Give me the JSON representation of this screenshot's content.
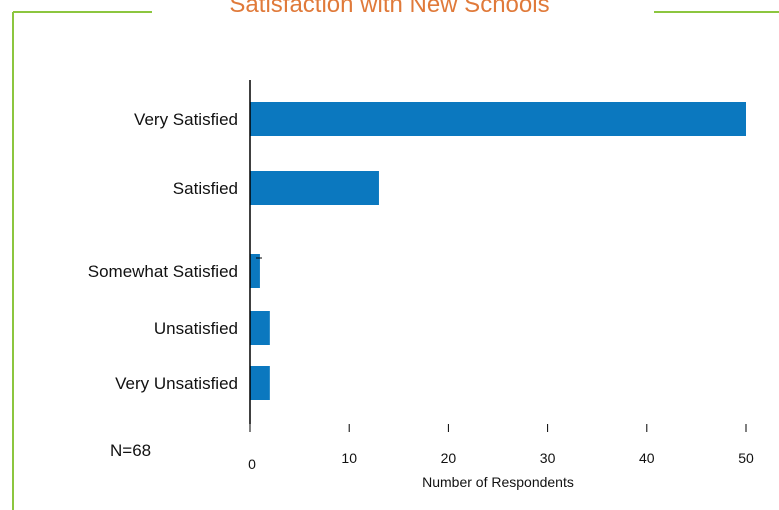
{
  "chart_data": {
    "type": "bar",
    "orientation": "horizontal",
    "title": "Satisfaction with New Schools",
    "xlabel": "Number of Respondents",
    "ylabel": "",
    "note": "N=68",
    "categories": [
      "Very Satisfied",
      "Satisfied",
      "Somewhat Satisfied",
      "Unsatisfied",
      "Very Unsatisfied"
    ],
    "values": [
      50,
      13,
      1,
      2,
      2
    ],
    "xlim": [
      0,
      50
    ],
    "ticks": [
      0,
      10,
      20,
      30,
      40,
      50
    ],
    "grid": false,
    "legend": "none"
  },
  "colors": {
    "bar": "#0b78bf",
    "frame": "#8cc63f",
    "title": "#e07a3a",
    "axis": "#000000",
    "text": "#111111"
  }
}
